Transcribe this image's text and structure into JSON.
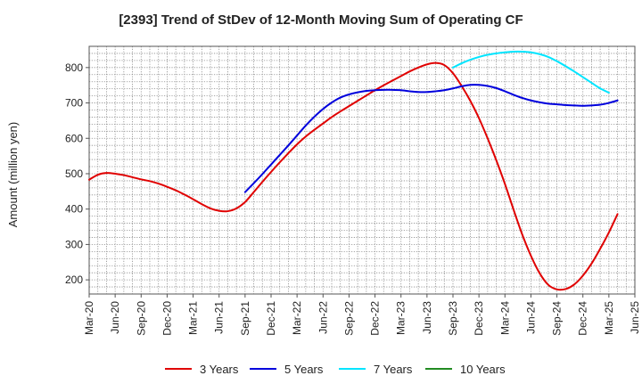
{
  "chart_data": {
    "type": "line",
    "title": "[2393]  Trend of StDev of 12-Month Moving Sum of Operating CF",
    "xlabel": "",
    "ylabel": "Amount (million yen)",
    "ylim": [
      160,
      860
    ],
    "yticks": [
      200,
      300,
      400,
      500,
      600,
      700,
      800
    ],
    "grid": true,
    "legend_position": "bottom",
    "x_tick_labels": [
      "Mar-20",
      "Jun-20",
      "Sep-20",
      "Dec-20",
      "Mar-21",
      "Jun-21",
      "Sep-21",
      "Dec-21",
      "Mar-22",
      "Jun-22",
      "Sep-22",
      "Dec-22",
      "Mar-23",
      "Jun-23",
      "Sep-23",
      "Dec-23",
      "Mar-24",
      "Jun-24",
      "Sep-24",
      "Dec-24",
      "Mar-25",
      "Jun-25"
    ],
    "x_months": 63,
    "series": [
      {
        "name": "3 Years",
        "color": "#e00000",
        "points": [
          [
            0,
            483
          ],
          [
            1,
            497
          ],
          [
            2,
            502
          ],
          [
            3,
            500
          ],
          [
            4,
            496
          ],
          [
            5,
            490
          ],
          [
            6,
            484
          ],
          [
            7,
            479
          ],
          [
            8,
            472
          ],
          [
            9,
            463
          ],
          [
            10,
            453
          ],
          [
            11,
            441
          ],
          [
            12,
            428
          ],
          [
            13,
            414
          ],
          [
            14,
            402
          ],
          [
            15,
            395
          ],
          [
            16,
            394
          ],
          [
            17,
            402
          ],
          [
            18,
            420
          ],
          [
            19,
            448
          ],
          [
            20,
            477
          ],
          [
            21,
            505
          ],
          [
            22,
            532
          ],
          [
            23,
            558
          ],
          [
            24,
            583
          ],
          [
            25,
            605
          ],
          [
            26,
            624
          ],
          [
            27,
            642
          ],
          [
            28,
            660
          ],
          [
            29,
            676
          ],
          [
            30,
            691
          ],
          [
            31,
            706
          ],
          [
            32,
            721
          ],
          [
            33,
            736
          ],
          [
            34,
            750
          ],
          [
            35,
            763
          ],
          [
            36,
            776
          ],
          [
            37,
            789
          ],
          [
            38,
            800
          ],
          [
            39,
            809
          ],
          [
            40,
            813
          ],
          [
            41,
            807
          ],
          [
            42,
            784
          ],
          [
            43,
            748
          ],
          [
            44,
            706
          ],
          [
            45,
            657
          ],
          [
            46,
            600
          ],
          [
            47,
            538
          ],
          [
            48,
            471
          ],
          [
            49,
            398
          ],
          [
            50,
            328
          ],
          [
            51,
            268
          ],
          [
            52,
            219
          ],
          [
            53,
            186
          ],
          [
            54,
            173
          ],
          [
            55,
            174
          ],
          [
            56,
            187
          ],
          [
            57,
            212
          ],
          [
            58,
            246
          ],
          [
            59,
            288
          ],
          [
            60,
            334
          ],
          [
            61,
            386
          ]
        ]
      },
      {
        "name": "5 Years",
        "color": "#0000dd",
        "points": [
          [
            18,
            448
          ],
          [
            19,
            473
          ],
          [
            20,
            499
          ],
          [
            21,
            526
          ],
          [
            22,
            553
          ],
          [
            23,
            580
          ],
          [
            24,
            608
          ],
          [
            25,
            636
          ],
          [
            26,
            661
          ],
          [
            27,
            683
          ],
          [
            28,
            701
          ],
          [
            29,
            715
          ],
          [
            30,
            724
          ],
          [
            31,
            730
          ],
          [
            32,
            734
          ],
          [
            33,
            736
          ],
          [
            34,
            737
          ],
          [
            35,
            737
          ],
          [
            36,
            736
          ],
          [
            37,
            733
          ],
          [
            38,
            731
          ],
          [
            39,
            731
          ],
          [
            40,
            733
          ],
          [
            41,
            736
          ],
          [
            42,
            741
          ],
          [
            43,
            747
          ],
          [
            44,
            751
          ],
          [
            45,
            751
          ],
          [
            46,
            748
          ],
          [
            47,
            742
          ],
          [
            48,
            733
          ],
          [
            49,
            723
          ],
          [
            50,
            714
          ],
          [
            51,
            707
          ],
          [
            52,
            702
          ],
          [
            53,
            698
          ],
          [
            54,
            696
          ],
          [
            55,
            694
          ],
          [
            56,
            693
          ],
          [
            57,
            692
          ],
          [
            58,
            693
          ],
          [
            59,
            695
          ],
          [
            60,
            700
          ],
          [
            61,
            707
          ]
        ]
      },
      {
        "name": "7 Years",
        "color": "#00e5ff",
        "points": [
          [
            42,
            800
          ],
          [
            43,
            812
          ],
          [
            44,
            822
          ],
          [
            45,
            830
          ],
          [
            46,
            836
          ],
          [
            47,
            840
          ],
          [
            48,
            843
          ],
          [
            49,
            845
          ],
          [
            50,
            845
          ],
          [
            51,
            843
          ],
          [
            52,
            838
          ],
          [
            53,
            830
          ],
          [
            54,
            818
          ],
          [
            55,
            804
          ],
          [
            56,
            789
          ],
          [
            57,
            773
          ],
          [
            58,
            757
          ],
          [
            59,
            741
          ],
          [
            60,
            729
          ]
        ]
      },
      {
        "name": "10 Years",
        "color": "#228b22",
        "points": []
      }
    ]
  }
}
